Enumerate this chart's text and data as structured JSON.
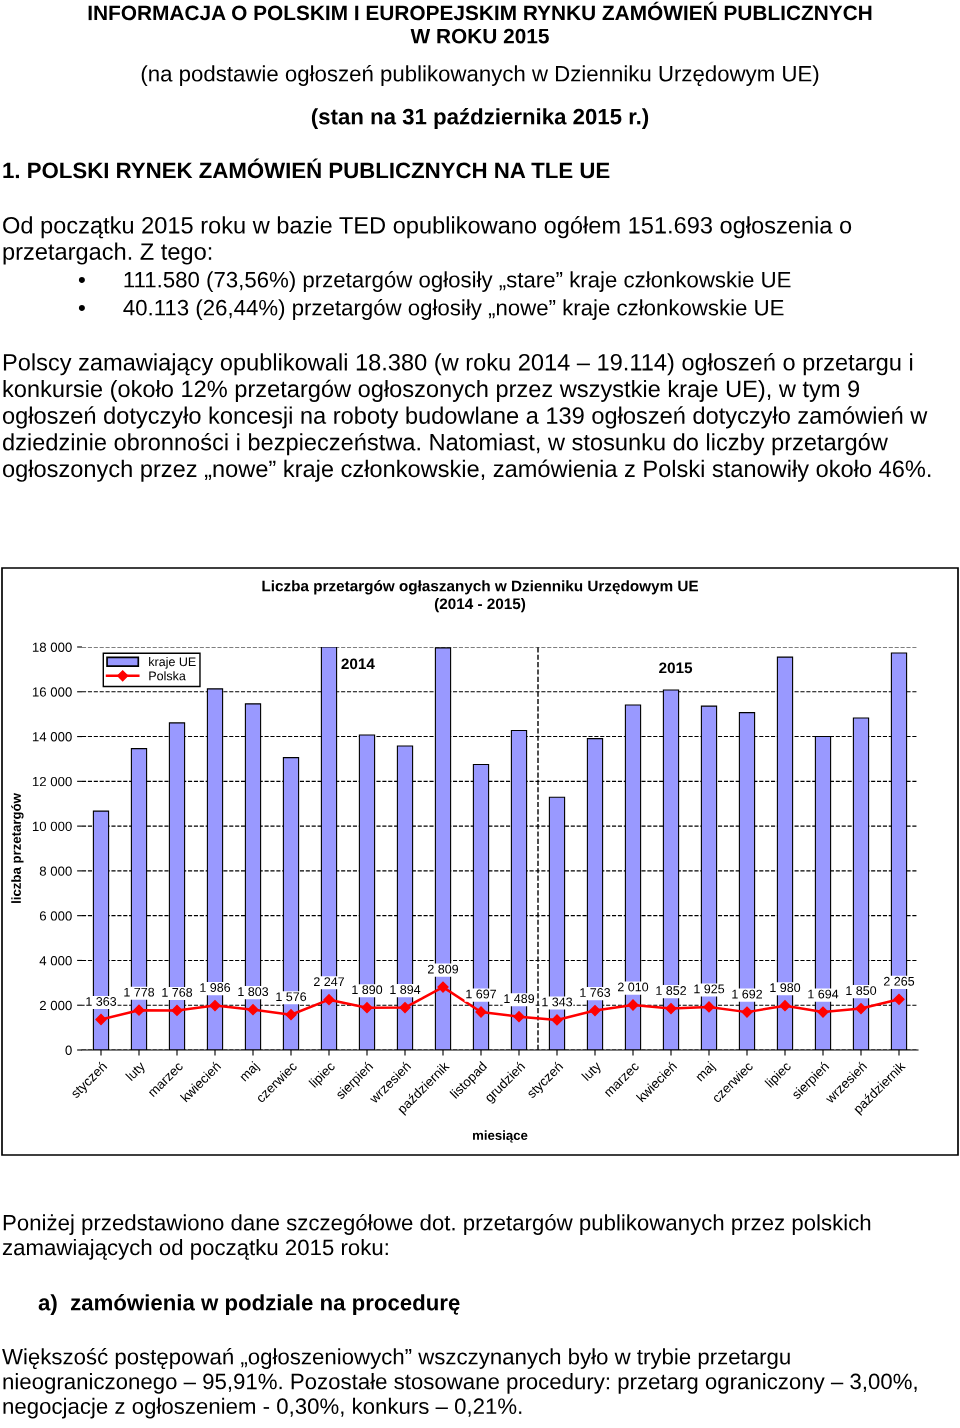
{
  "chart_data": {
    "type": "bar",
    "title": "Liczba przetargów ogłaszanych w Dzienniku Urzędowym UE",
    "subtitle": "(2014 - 2015)",
    "xlabel": "miesiące",
    "ylabel": "liczba przetargów",
    "categories": [
      "styczeń",
      "luty",
      "marzec",
      "kwiecień",
      "maj",
      "czerwiec",
      "lipiec",
      "sierpień",
      "wrzesień",
      "październik",
      "listopad",
      "grudzień",
      "styczeń",
      "luty",
      "marzec",
      "kwiecień",
      "maj",
      "czerwiec",
      "lipiec",
      "sierpień",
      "wrzesień",
      "październik"
    ],
    "series": [
      {
        "name": "kraje UE",
        "type": "bar",
        "color": "#9999ff",
        "values": [
          10670,
          13460,
          14610,
          16130,
          15460,
          13060,
          18000,
          14070,
          13580,
          17960,
          12750,
          14270,
          11290,
          13910,
          15410,
          16080,
          15360,
          15070,
          17550,
          14000,
          14830,
          17730
        ]
      },
      {
        "name": "Polska",
        "type": "line",
        "color": "#ff0000",
        "marker": "diamond",
        "line_style": "solid",
        "values": [
          1363,
          1778,
          1768,
          1986,
          1803,
          1576,
          2247,
          1890,
          1894,
          2809,
          1697,
          1489,
          1343,
          1763,
          2010,
          1852,
          1925,
          1692,
          1980,
          1694,
          1850,
          2265
        ],
        "value_labels": [
          "1 363",
          "1 778",
          "1 768",
          "1 986",
          "1 803",
          "1 576",
          "2 247",
          "1 890",
          "1 894",
          "2 809",
          "1 697",
          "1 489",
          "1 343",
          "1 763",
          "2 010",
          "1 852",
          "1 925",
          "1 692",
          "1 980",
          "1 694",
          "1 850",
          "2 265"
        ]
      }
    ],
    "ylim": [
      0,
      18000
    ],
    "yticks": [
      0,
      {
        "value": 2000,
        "label": "2 000"
      },
      {
        "value": 4000,
        "label": "4 000"
      },
      {
        "value": 6000,
        "label": "6 000"
      },
      {
        "value": 8000,
        "label": "8 000"
      },
      {
        "value": 10000,
        "label": "10 000"
      },
      {
        "value": 12000,
        "label": "12 000"
      },
      {
        "value": 14000,
        "label": "14 000"
      },
      {
        "value": 16000,
        "label": "16 000"
      },
      {
        "value": 18000,
        "label": "18 000"
      }
    ],
    "grid": "y",
    "legend": "top left",
    "ref_lines": [
      {
        "axis": "x",
        "value": "grudzień",
        "line_style": "dashed",
        "color": "#000000"
      }
    ],
    "annotations": [
      "INFORMACJA O POLSKIM I EUROPEJSKIM RYNKU ZAMÓWIEŃ PUBLICZNYCH\nW ROKU 2015",
      "(na podstawie ogłoszeń publikowanych w Dzienniku Urzędowym UE)",
      "(stan na 31 października 2015 r.)",
      "1. POLSKI RYNEK ZAMÓWIEŃ PUBLICZNYCH NA TLE UE",
      "Od początku 2015 roku w bazie TED opublikowano ogółem 151.693 ogłoszenia o przetargach. Z tego:",
      "•      111.580 (73,56%) przetargów ogłosiły „stare” kraje członkowskie UE",
      "•      40.113 (26,44%) przetargów ogłosiły „nowe” kraje członkowskie UE",
      "Polscy zamawiający opublikowali 18.380 (w roku 2014 – 19.114) ogłoszeń o przetargu i konkursie (około 12% przetargów ogłoszonych przez wszystkie kraje UE), w tym 9 ogłoszeń dotyczyło koncesji na roboty budowlane a 139 ogłoszeń dotyczyło zamówień w dziedzinie obronności i bezpieczeństwa. Natomiast, w stosunku do liczby przetargów ogłoszonych przez „nowe” kraje członkowskie, zamówienia z Polski stanowiły około 46%.",
      "Poniżej przedstawiono dane szczegółowe dot. przetargów publikowanych przez polskich zamawiających od początku 2015 roku:",
      "a)  zamówienia w podziale na procedurę",
      "Większość postępowań „ogłoszeniowych” wszczynanych było w trybie przetargu nieograniczonego – 95,91%. Pozostałe stosowane procedury: przetarg ograniczony – 3,00%, negocjacje z ogłoszeniem - 0,30%, konkurs – 0,21%.",
      "2014",
      "2015"
    ]
  }
}
